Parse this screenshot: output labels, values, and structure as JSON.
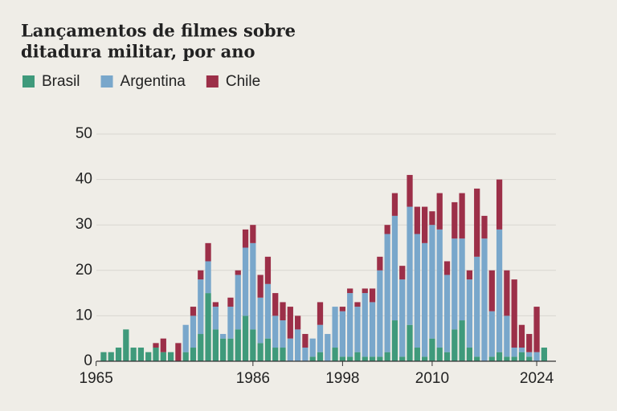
{
  "chart_data": {
    "type": "stacked_bar",
    "title": [
      "Lançamentos de filmes sobre",
      "ditadura militar, por ano"
    ],
    "x": [
      1966,
      1967,
      1968,
      1969,
      1970,
      1971,
      1972,
      1973,
      1974,
      1975,
      1976,
      1977,
      1978,
      1979,
      1980,
      1981,
      1982,
      1983,
      1984,
      1985,
      1986,
      1987,
      1988,
      1989,
      1990,
      1991,
      1992,
      1993,
      1994,
      1995,
      1996,
      1997,
      1998,
      1999,
      2000,
      2001,
      2002,
      2003,
      2004,
      2005,
      2006,
      2007,
      2008,
      2009,
      2010,
      2011,
      2012,
      2013,
      2014,
      2015,
      2016,
      2017,
      2018,
      2019,
      2020,
      2021,
      2022,
      2023,
      2024,
      2025
    ],
    "series": [
      {
        "name": "Brasil",
        "color": "#3f9a7b",
        "values": [
          2,
          2,
          3,
          7,
          3,
          3,
          2,
          3,
          2,
          2,
          0,
          2,
          3,
          6,
          15,
          7,
          5,
          5,
          7,
          10,
          7,
          4,
          5,
          3,
          3,
          0,
          0,
          0,
          1,
          2,
          0,
          3,
          1,
          1,
          2,
          1,
          1,
          1,
          2,
          9,
          1,
          8,
          3,
          1,
          5,
          3,
          2,
          7,
          9,
          3,
          1,
          0,
          1,
          2,
          1,
          1,
          2,
          1,
          0,
          3
        ]
      },
      {
        "name": "Argentina",
        "color": "#79a7cb",
        "values": [
          0,
          0,
          0,
          0,
          0,
          0,
          0,
          0,
          0,
          0,
          0,
          6,
          7,
          12,
          7,
          5,
          1,
          7,
          12,
          15,
          19,
          10,
          12,
          7,
          6,
          5,
          7,
          3,
          4,
          6,
          6,
          9,
          10,
          14,
          10,
          14,
          12,
          19,
          26,
          23,
          17,
          26,
          25,
          25,
          25,
          26,
          17,
          20,
          18,
          15,
          22,
          27,
          10,
          27,
          9,
          2,
          1,
          1,
          2,
          0
        ]
      },
      {
        "name": "Chile",
        "color": "#9c2f48",
        "values": [
          0,
          0,
          0,
          0,
          0,
          0,
          0,
          1,
          3,
          0,
          4,
          0,
          2,
          2,
          4,
          1,
          0,
          2,
          1,
          4,
          4,
          5,
          6,
          5,
          4,
          7,
          3,
          3,
          0,
          5,
          0,
          0,
          1,
          1,
          1,
          1,
          3,
          3,
          2,
          5,
          3,
          7,
          6,
          8,
          3,
          8,
          3,
          8,
          10,
          2,
          15,
          5,
          9,
          11,
          10,
          15,
          5,
          4,
          10,
          0
        ]
      }
    ],
    "xlim": [
      1964.5,
      2025.5
    ],
    "xticks": [
      1965,
      1986,
      1998,
      2010,
      2024
    ],
    "ylim": [
      0,
      50
    ],
    "yticks": [
      0,
      10,
      20,
      30,
      40,
      50
    ],
    "grid": true
  }
}
